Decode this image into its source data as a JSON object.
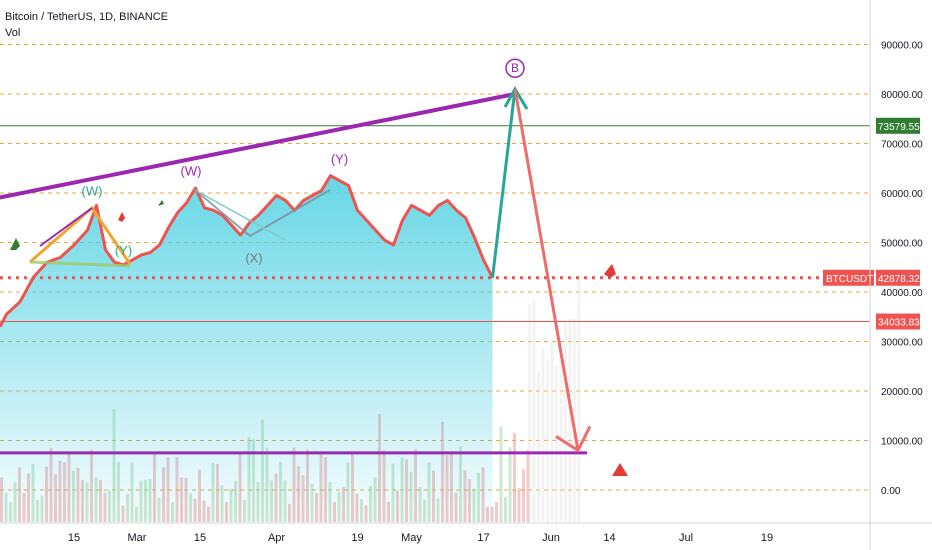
{
  "symbol": {
    "title": "Bitcoin / TetherUS, 1D, BINANCE",
    "volume_label": "Vol"
  },
  "colors": {
    "price_line": "#ef5350",
    "area_fill": "#4dd0e1",
    "grid_dashed": "#f0a62e",
    "trendline": "#9c27b0",
    "projection_up": "#26a69a",
    "projection_down": "#ef6c6c",
    "resistance_line": "#2e7d32",
    "support_line": "#e57373",
    "badge_current": "#ef5350",
    "badge_resistance": "#2e7d32",
    "badge_support": "#ef5350"
  },
  "chart_data": {
    "type": "line",
    "title": "Bitcoin / TetherUS, 1D, BINANCE",
    "xlabel": "",
    "ylabel": "",
    "ylim": [
      -5000,
      100000
    ],
    "xlim": [
      "2024-01-29",
      "2024-07-29"
    ],
    "grid": "horizontal dashed",
    "y_ticks": [
      "90000.00",
      "80000.00",
      "70000.00",
      "60000.00",
      "50000.00",
      "40000.00",
      "30000.00",
      "20000.00",
      "10000.00",
      "0.00"
    ],
    "y_tick_values": [
      90000,
      80000,
      70000,
      60000,
      50000,
      40000,
      30000,
      20000,
      10000,
      0
    ],
    "x_ticks": [
      {
        "label": "15",
        "date": "2022-02-15"
      },
      {
        "label": "Mar",
        "date": "2022-03-01"
      },
      {
        "label": "15",
        "date": "2022-03-15"
      },
      {
        "label": "Apr",
        "date": "2022-04-01"
      },
      {
        "label": "19",
        "date": "2022-04-19"
      },
      {
        "label": "May",
        "date": "2022-05-01"
      },
      {
        "label": "17",
        "date": "2022-05-17"
      },
      {
        "label": "Jun",
        "date": "2022-06-01"
      },
      {
        "label": "14",
        "date": "2022-06-14"
      },
      {
        "label": "Jul",
        "date": "2022-07-01"
      },
      {
        "label": "19",
        "date": "2022-07-19"
      }
    ],
    "series": [
      {
        "values_note": "",
        "x": [
          "2022-01-31",
          "2022-02-03",
          "2022-02-06",
          "2022-02-09",
          "2022-02-12",
          "2022-02-15",
          "2022-02-18",
          "2022-02-20",
          "2022-02-22",
          "2022-02-24",
          "2022-02-26",
          "2022-02-28",
          "2022-03-02",
          "2022-03-04",
          "2022-03-06",
          "2022-03-08",
          "2022-03-10",
          "2022-03-12",
          "2022-03-14",
          "2022-03-16",
          "2022-03-18",
          "2022-03-20",
          "2022-03-22",
          "2022-03-24",
          "2022-03-26",
          "2022-03-28",
          "2022-03-30",
          "2022-04-01",
          "2022-04-03",
          "2022-04-05",
          "2022-04-07",
          "2022-04-09",
          "2022-04-11",
          "2022-04-13",
          "2022-04-15",
          "2022-04-17",
          "2022-04-19",
          "2022-04-21",
          "2022-04-23",
          "2022-04-25",
          "2022-04-27",
          "2022-04-29",
          "2022-05-01",
          "2022-05-03",
          "2022-05-05",
          "2022-05-07",
          "2022-05-09",
          "2022-05-11",
          "2022-05-13",
          "2022-05-15",
          "2022-05-17",
          "2022-05-19"
        ],
        "y": [
          35500,
          38000,
          43000,
          46000,
          47000,
          49500,
          52500,
          57500,
          48500,
          46000,
          45500,
          46500,
          47500,
          48000,
          49500,
          53000,
          56000,
          58000,
          61000,
          57000,
          56500,
          55500,
          53500,
          51500,
          54000,
          55500,
          57500,
          59500,
          58500,
          56500,
          58500,
          59500,
          60500,
          63500,
          62500,
          61500,
          56500,
          54500,
          52500,
          50500,
          49500,
          54500,
          57500,
          56500,
          55500,
          57500,
          58500,
          56500,
          55000,
          51000,
          46500,
          42878
        ]
      }
    ],
    "annotations": [
      {
        "label": "(W)",
        "date": "2022-02-19",
        "value": 59500,
        "color": "#26a69a"
      },
      {
        "label": "(Y)",
        "date": "2022-02-26",
        "value": 47500,
        "color": "#26a69a"
      },
      {
        "label": "(W)",
        "date": "2022-03-13",
        "value": 63500,
        "color": "#9c27b0"
      },
      {
        "label": "(X)",
        "date": "2022-03-27",
        "value": 46000,
        "color": "#787b86"
      },
      {
        "label": "(Y)",
        "date": "2022-04-15",
        "value": 66000,
        "color": "#9c27b0"
      },
      {
        "label": "B",
        "date": "2022-05-24",
        "value": 84000,
        "color": "#9c27b0"
      }
    ],
    "projection": {
      "up": {
        "from_date": "2022-05-19",
        "from_value": 42878,
        "to_date": "2022-05-24",
        "to_value": 81000
      },
      "down": {
        "from_date": "2022-05-24",
        "from_value": 81000,
        "to_date": "2022-06-07",
        "to_value": 8000
      }
    },
    "trendline": {
      "from_date": "2022-01-29",
      "from_value": 59000,
      "to_date": "2022-05-24",
      "to_value": 80000
    },
    "support_bottom": {
      "value": 7500,
      "to_date": "2022-06-09"
    },
    "horizontal_levels": [
      {
        "value": 73579.55,
        "label": "73579.55",
        "color": "#2e7d32"
      },
      {
        "value": 42878.32,
        "label": "42878.32",
        "tag": "BTCUSDT",
        "color": "#ef5350",
        "style": "dotted"
      },
      {
        "value": 34033.83,
        "label": "34033.83",
        "color": "#ef5350"
      }
    ]
  }
}
